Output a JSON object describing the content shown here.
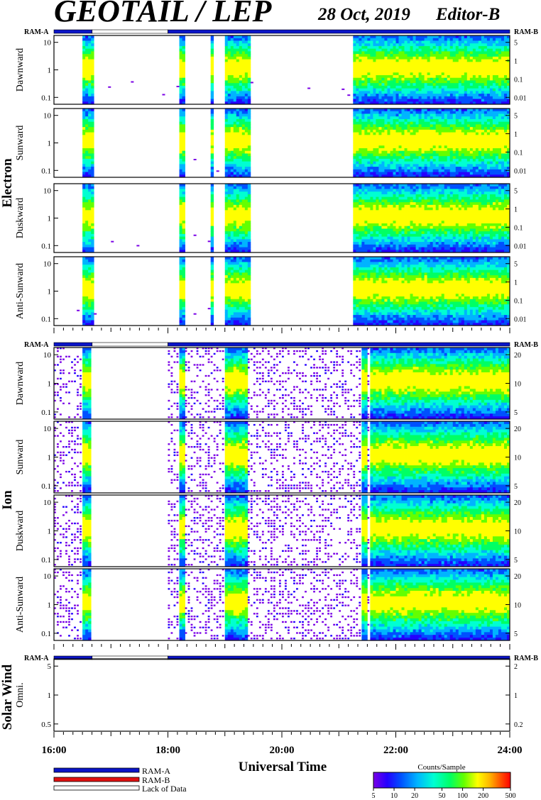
{
  "title": "GEOTAIL / LEP",
  "date": "28 Oct, 2019",
  "editor": "Editor-B",
  "colors": {
    "ram_a": "#0a14c8",
    "ram_b": "#e01010",
    "lack": "#ffffff",
    "frame": "#000000",
    "colorbar": [
      "#7a00e6",
      "#2400ff",
      "#0050ff",
      "#00b4ff",
      "#00ffd2",
      "#00ff64",
      "#64ff00",
      "#ffff00",
      "#ffb400",
      "#ff5000",
      "#ff0000"
    ]
  },
  "chart_data": {
    "type": "heatmap",
    "xlabel": "Universal Time",
    "x_ticks": [
      "16:00",
      "18:00",
      "20:00",
      "22:00",
      "24:00"
    ],
    "x_range_hours": [
      16,
      24
    ],
    "status_bar": {
      "left_label": "RAM-A",
      "right_label": "RAM-B",
      "segments": [
        {
          "state": "RAM-A",
          "start": 16.0,
          "end": 16.67
        },
        {
          "state": "Lack of Data",
          "start": 16.67,
          "end": 18.0
        },
        {
          "state": "RAM-A",
          "start": 18.0,
          "end": 24.0
        }
      ]
    },
    "legend": {
      "items": [
        {
          "label": "RAM-A",
          "color": "#0a14c8"
        },
        {
          "label": "RAM-B",
          "color": "#e01010"
        },
        {
          "label": "Lack of Data",
          "color": "#ffffff"
        }
      ]
    },
    "colorbar": {
      "title": "Counts/Sample",
      "scale": "log",
      "range": [
        5,
        500
      ],
      "ticks": [
        "5",
        "10",
        "20",
        "50",
        "100",
        "200",
        "500"
      ]
    },
    "groups": [
      {
        "name": "Electron",
        "y_left_scale": "log",
        "y_left_ticks": [
          "0.1",
          "1",
          "10"
        ],
        "y_right_scale": "log",
        "y_right_ticks": [
          "0.01",
          "0.1",
          "1",
          "5"
        ],
        "panels": [
          {
            "label": "Dawnward"
          },
          {
            "label": "Sunward"
          },
          {
            "label": "Duskward"
          },
          {
            "label": "Anti-Sunward"
          }
        ],
        "activity_bursts_hours": [
          [
            16.5,
            16.68
          ],
          [
            18.2,
            18.3
          ],
          [
            18.75,
            18.82
          ],
          [
            19.0,
            19.45
          ],
          [
            21.25,
            24.0
          ]
        ]
      },
      {
        "name": "Ion",
        "y_left_scale": "log",
        "y_left_ticks": [
          "0.1",
          "1",
          "10"
        ],
        "y_right_scale": "linear",
        "y_right_ticks": [
          "5",
          "10",
          "20"
        ],
        "panels": [
          {
            "label": "Dawnward"
          },
          {
            "label": "Sunward"
          },
          {
            "label": "Duskward"
          },
          {
            "label": "Anti-Sunward"
          }
        ],
        "noise_intervals_hours": [
          [
            16.0,
            16.67
          ],
          [
            18.0,
            24.0
          ]
        ],
        "activity_bursts_hours": [
          [
            16.5,
            16.65
          ],
          [
            18.2,
            18.28
          ],
          [
            19.0,
            19.4
          ],
          [
            21.4,
            21.5
          ],
          [
            21.55,
            24.0
          ]
        ]
      },
      {
        "name": "Solar Wind",
        "y_left_scale": "log",
        "y_left_ticks": [
          "0.5",
          "1",
          "5"
        ],
        "y_right_scale": "log",
        "y_right_ticks": [
          "0.2",
          "1",
          "2"
        ],
        "panels": [
          {
            "label": "Omni."
          }
        ]
      }
    ]
  }
}
